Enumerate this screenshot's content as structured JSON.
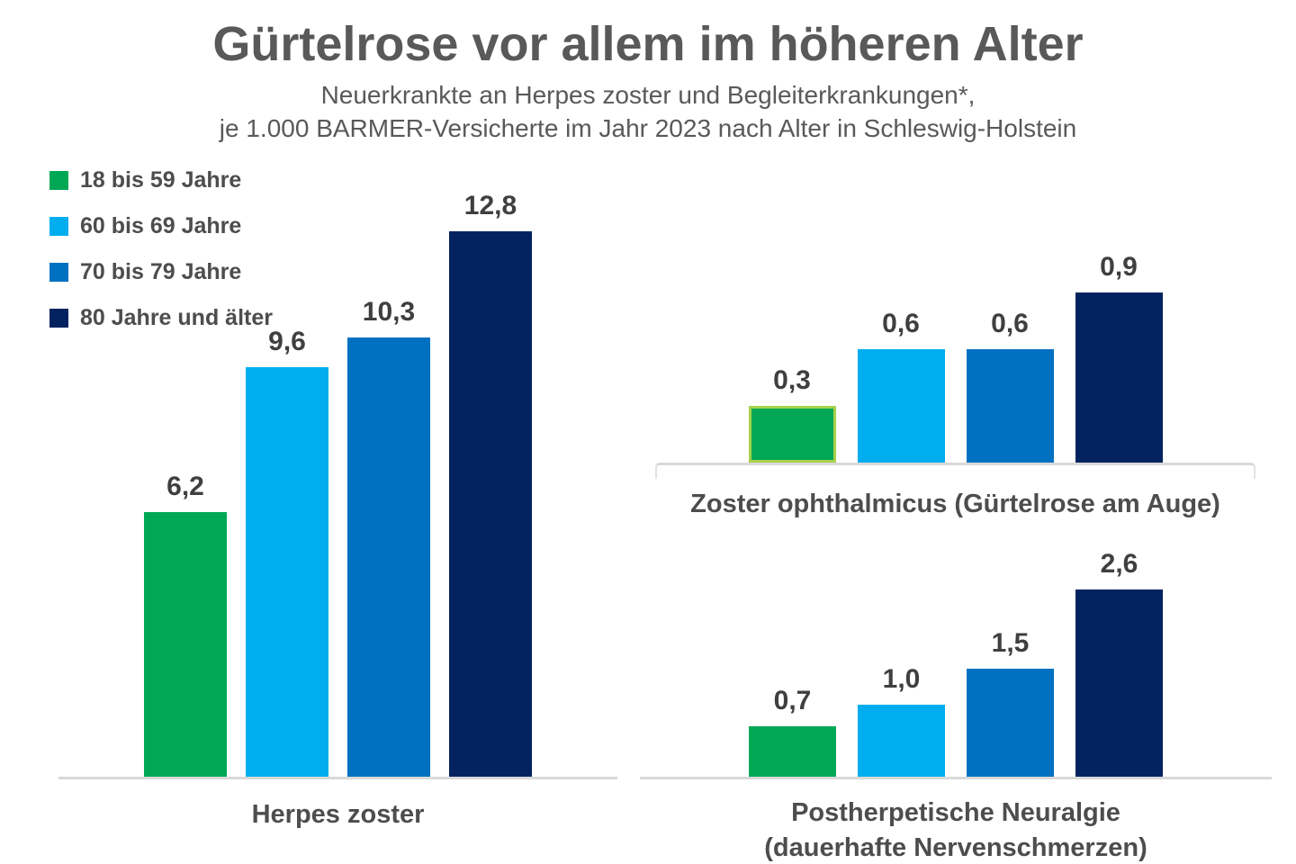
{
  "title": "Gürtelrose vor allem im höheren Alter",
  "subtitle_line1": "Neuerkrankte an Herpes zoster und Begleiterkrankungen*,",
  "subtitle_line2": "je 1.000 BARMER-Versicherte im Jahr 2023 nach Alter in Schleswig-Holstein",
  "colors": {
    "age_18_59": "#00a855",
    "age_60_69": "#00aeef",
    "age_70_79": "#0071c1",
    "age_80_plus": "#02235f",
    "highlight_border": "#a6d24b",
    "axis_line": "#d9d9d9",
    "heading_text": "#595959",
    "label_text": "#3f3f3f"
  },
  "legend": {
    "position": "top-left",
    "items": [
      {
        "label": "18 bis 59 Jahre",
        "color": "#00a855"
      },
      {
        "label": "60 bis 69 Jahre",
        "color": "#00aeef"
      },
      {
        "label": "70 bis 79 Jahre",
        "color": "#0071c1"
      },
      {
        "label": "80 Jahre und älter",
        "color": "#02235f"
      }
    ]
  },
  "chart_data": [
    {
      "type": "bar",
      "title": "Herpes zoster",
      "group_label_lines": [
        "Herpes zoster"
      ],
      "categories": [
        "18 bis 59 Jahre",
        "60 bis 69 Jahre",
        "70 bis 79 Jahre",
        "80 Jahre und älter"
      ],
      "values": [
        6.2,
        9.6,
        10.3,
        12.8
      ],
      "value_labels": [
        "6,2",
        "9,6",
        "10,3",
        "12,8"
      ],
      "ylim": [
        0,
        14
      ],
      "grid": false,
      "highlighted_bar": null
    },
    {
      "type": "bar",
      "title": "Zoster ophthalmicus (Gürtelrose am Auge)",
      "group_label_lines": [
        "Zoster ophthalmicus (Gürtelrose am Auge)"
      ],
      "categories": [
        "18 bis 59 Jahre",
        "60 bis 69 Jahre",
        "70 bis 79 Jahre",
        "80 Jahre und älter"
      ],
      "values": [
        0.3,
        0.6,
        0.6,
        0.9
      ],
      "value_labels": [
        "0,3",
        "0,6",
        "0,6",
        "0,9"
      ],
      "ylim": [
        0,
        1.2
      ],
      "grid": false,
      "highlighted_bar": 0
    },
    {
      "type": "bar",
      "title": "Postherpetische Neuralgie (dauerhafte Nervenschmerzen)",
      "group_label_lines": [
        "Postherpetische Neuralgie",
        "(dauerhafte Nervenschmerzen)"
      ],
      "categories": [
        "18 bis 59 Jahre",
        "60 bis 69 Jahre",
        "70 bis 79 Jahre",
        "80 Jahre und älter"
      ],
      "values": [
        0.7,
        1.0,
        1.5,
        2.6
      ],
      "value_labels": [
        "0,7",
        "1,0",
        "1,5",
        "2,6"
      ],
      "ylim": [
        0,
        3.25
      ],
      "grid": false,
      "highlighted_bar": null
    }
  ]
}
